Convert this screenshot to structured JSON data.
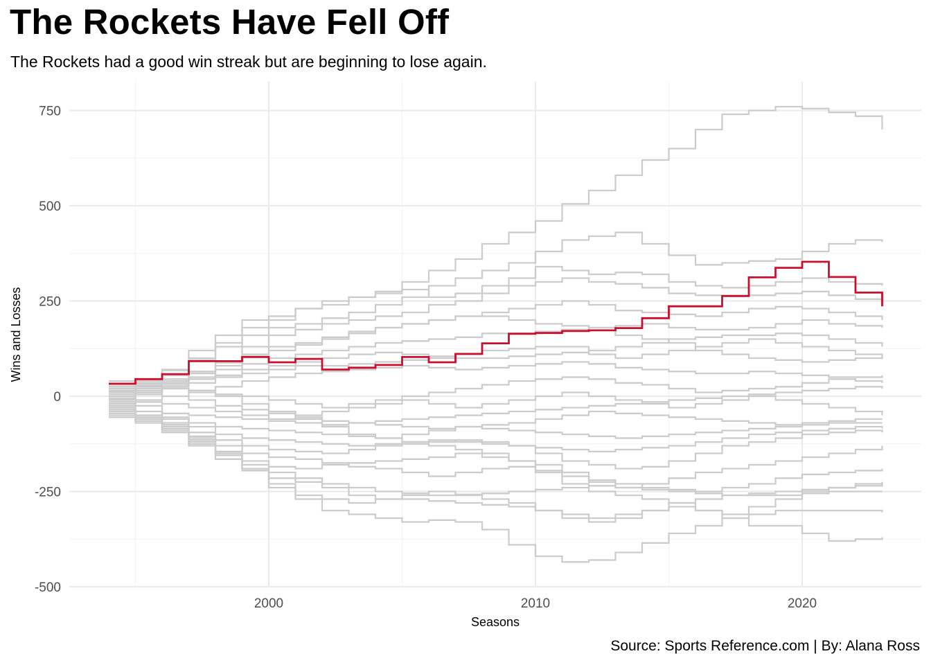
{
  "chart_data": {
    "type": "line",
    "title": "The Rockets Have Fell Off",
    "subtitle": "The Rockets had a good win streak but are beginning to lose again.",
    "caption": "Source: Sports Reference.com | By: Alana Ross",
    "xlabel": "Seasons",
    "ylabel": "Wins and Losses",
    "xlim": [
      1992.4,
      2024.4
    ],
    "ylim": [
      -500,
      800
    ],
    "x_ticks": [
      2000,
      2010,
      2020
    ],
    "x_tick_labels": [
      "2000",
      "2010",
      "2020"
    ],
    "y_ticks": [
      750,
      500,
      250,
      0,
      -250,
      -500
    ],
    "y_tick_labels": [
      "750",
      "500",
      "250",
      "0",
      "-250",
      "-500"
    ],
    "grid": true,
    "step_lines": true,
    "colors": {
      "highlight": "#c8102e",
      "other": "#cccccc",
      "grid": "#ebebeb"
    },
    "x": [
      1994,
      1995,
      1996,
      1997,
      1998,
      1999,
      2000,
      2001,
      2002,
      2003,
      2004,
      2005,
      2006,
      2007,
      2008,
      2009,
      2010,
      2011,
      2012,
      2013,
      2014,
      2015,
      2016,
      2017,
      2018,
      2019,
      2020,
      2021,
      2022,
      2023
    ],
    "series": [
      {
        "highlight": true,
        "values": [
          33,
          45,
          58,
          92,
          92,
          103,
          89,
          98,
          70,
          75,
          82,
          103,
          89,
          111,
          139,
          164,
          166,
          171,
          173,
          179,
          205,
          236,
          236,
          263,
          312,
          337,
          353,
          313,
          272,
          236
        ]
      },
      {
        "values": [
          15,
          40,
          68,
          120,
          160,
          200,
          210,
          230,
          240,
          260,
          275,
          300,
          330,
          360,
          400,
          430,
          460,
          505,
          540,
          580,
          620,
          650,
          700,
          740,
          750,
          760,
          755,
          745,
          735,
          700
        ]
      },
      {
        "values": [
          20,
          45,
          70,
          100,
          130,
          160,
          180,
          190,
          205,
          220,
          240,
          260,
          290,
          310,
          330,
          350,
          380,
          410,
          420,
          430,
          400,
          370,
          345,
          350,
          355,
          360,
          380,
          400,
          410,
          405
        ]
      },
      {
        "values": [
          10,
          35,
          55,
          95,
          140,
          180,
          200,
          230,
          250,
          260,
          270,
          280,
          260,
          270,
          290,
          310,
          340,
          330,
          320,
          325,
          320,
          300,
          290,
          285,
          290,
          300,
          310,
          300,
          295,
          290
        ]
      },
      {
        "values": [
          -10,
          5,
          35,
          60,
          90,
          130,
          160,
          175,
          190,
          200,
          210,
          220,
          240,
          250,
          270,
          290,
          300,
          310,
          300,
          295,
          285,
          270,
          265,
          265,
          265,
          270,
          275,
          265,
          255,
          250
        ]
      },
      {
        "values": [
          -20,
          10,
          30,
          50,
          80,
          110,
          130,
          140,
          155,
          170,
          180,
          190,
          200,
          210,
          220,
          230,
          240,
          250,
          240,
          225,
          220,
          215,
          210,
          220,
          230,
          235,
          230,
          220,
          210,
          200
        ]
      },
      {
        "values": [
          0,
          20,
          40,
          60,
          70,
          85,
          100,
          110,
          120,
          130,
          140,
          145,
          150,
          155,
          165,
          165,
          170,
          175,
          180,
          185,
          190,
          180,
          175,
          175,
          180,
          190,
          200,
          190,
          185,
          180
        ]
      },
      {
        "values": [
          5,
          25,
          35,
          45,
          55,
          70,
          80,
          90,
          100,
          110,
          115,
          110,
          105,
          100,
          100,
          105,
          110,
          115,
          120,
          130,
          140,
          150,
          155,
          160,
          160,
          165,
          160,
          150,
          140,
          130
        ]
      },
      {
        "values": [
          -5,
          10,
          25,
          35,
          50,
          60,
          70,
          80,
          80,
          85,
          90,
          95,
          100,
          110,
          120,
          125,
          130,
          130,
          110,
          100,
          110,
          120,
          130,
          140,
          150,
          140,
          130,
          120,
          110,
          100
        ]
      },
      {
        "values": [
          -15,
          -10,
          0,
          15,
          25,
          40,
          50,
          60,
          65,
          70,
          75,
          80,
          75,
          70,
          75,
          80,
          85,
          90,
          85,
          75,
          70,
          65,
          60,
          60,
          65,
          60,
          55,
          50,
          50,
          55
        ]
      },
      {
        "values": [
          25,
          30,
          20,
          15,
          5,
          0,
          -10,
          -20,
          -30,
          -20,
          -10,
          0,
          10,
          20,
          30,
          40,
          45,
          50,
          45,
          35,
          30,
          20,
          10,
          15,
          20,
          25,
          35,
          45,
          40,
          35
        ]
      },
      {
        "values": [
          -25,
          -15,
          -20,
          -30,
          -40,
          -50,
          -60,
          -50,
          -40,
          -30,
          -20,
          -10,
          -20,
          -30,
          -20,
          -10,
          0,
          10,
          0,
          -10,
          -20,
          -30,
          -20,
          -10,
          0,
          -10,
          -20,
          -30,
          -40,
          -50
        ]
      },
      {
        "values": [
          30,
          15,
          0,
          -10,
          -25,
          -35,
          -45,
          -55,
          -65,
          -70,
          -75,
          -80,
          -85,
          -80,
          -75,
          -70,
          -60,
          -50,
          -40,
          -45,
          -50,
          -55,
          -60,
          -65,
          -70,
          -75,
          -70,
          -65,
          -60,
          -60
        ]
      },
      {
        "values": [
          -30,
          -40,
          -55,
          -70,
          -80,
          -85,
          -90,
          -95,
          -100,
          -105,
          -110,
          -100,
          -90,
          -80,
          -85,
          -90,
          -95,
          -100,
          -105,
          -110,
          -105,
          -100,
          -95,
          -90,
          -85,
          -80,
          -75,
          -70,
          -70,
          -70
        ]
      },
      {
        "values": [
          -35,
          -50,
          -60,
          -80,
          -100,
          -110,
          -115,
          -120,
          -125,
          -130,
          -125,
          -120,
          -115,
          -120,
          -125,
          -130,
          -135,
          -140,
          -145,
          -140,
          -135,
          -130,
          -120,
          -110,
          -100,
          -95,
          -90,
          -85,
          -80,
          -85
        ]
      },
      {
        "values": [
          -40,
          -55,
          -75,
          -95,
          -115,
          -130,
          -140,
          -145,
          -150,
          -140,
          -130,
          -125,
          -120,
          -115,
          -120,
          -130,
          -150,
          -170,
          -180,
          -190,
          -185,
          -170,
          -150,
          -130,
          -120,
          -110,
          -100,
          -95,
          -90,
          -95
        ]
      },
      {
        "values": [
          -45,
          -60,
          -80,
          -105,
          -130,
          -150,
          -160,
          -165,
          -175,
          -185,
          -190,
          -200,
          -210,
          -200,
          -190,
          -185,
          -195,
          -210,
          -225,
          -240,
          -230,
          -215,
          -200,
          -190,
          -180,
          -170,
          -160,
          -150,
          -140,
          -130
        ]
      },
      {
        "values": [
          -50,
          -65,
          -90,
          -115,
          -145,
          -170,
          -185,
          -190,
          -180,
          -175,
          -170,
          -165,
          -160,
          -150,
          -160,
          -170,
          -180,
          -200,
          -220,
          -230,
          -240,
          -245,
          -250,
          -240,
          -230,
          -215,
          -205,
          -200,
          -195,
          -190
        ]
      },
      {
        "values": [
          -55,
          -70,
          -95,
          -125,
          -150,
          -180,
          -200,
          -215,
          -230,
          -240,
          -250,
          -255,
          -260,
          -258,
          -255,
          -250,
          -245,
          -240,
          -235,
          -240,
          -245,
          -250,
          -255,
          -260,
          -255,
          -250,
          -245,
          -240,
          -235,
          -230
        ]
      },
      {
        "values": [
          -30,
          -60,
          -95,
          -130,
          -165,
          -195,
          -215,
          -225,
          -240,
          -260,
          -270,
          -270,
          -275,
          -280,
          -285,
          -290,
          -300,
          -310,
          -320,
          -310,
          -300,
          -290,
          -300,
          -310,
          -290,
          -270,
          -250,
          -240,
          -230,
          -225
        ]
      },
      {
        "values": [
          -20,
          -50,
          -85,
          -120,
          -155,
          -190,
          -230,
          -260,
          -270,
          -280,
          -270,
          -260,
          -250,
          -260,
          -270,
          -280,
          -300,
          -320,
          -330,
          -320,
          -300,
          -280,
          -270,
          -260,
          -260,
          -260,
          -255,
          -250,
          -250,
          -250
        ]
      },
      {
        "values": [
          -10,
          -40,
          -70,
          -110,
          -150,
          -195,
          -240,
          -270,
          -300,
          -310,
          -320,
          -330,
          -325,
          -330,
          -350,
          -390,
          -420,
          -435,
          -430,
          -410,
          -385,
          -360,
          -340,
          -320,
          -310,
          -300,
          -300,
          -300,
          -300,
          -305
        ]
      },
      {
        "values": [
          40,
          30,
          20,
          10,
          0,
          -20,
          -40,
          -60,
          -80,
          -100,
          -110,
          -120,
          -130,
          -140,
          -150,
          -170,
          -200,
          -230,
          -250,
          -260,
          -270,
          -280,
          -300,
          -320,
          -340,
          -340,
          -360,
          -380,
          -375,
          -370
        ]
      },
      {
        "values": [
          12,
          28,
          45,
          65,
          88,
          105,
          120,
          135,
          150,
          165,
          180,
          190,
          200,
          210,
          210,
          200,
          190,
          185,
          180,
          160,
          150,
          140,
          120,
          110,
          100,
          95,
          90,
          95,
          100,
          105
        ]
      },
      {
        "values": [
          -8,
          -25,
          -45,
          -50,
          -55,
          -60,
          -65,
          -70,
          -75,
          -70,
          -65,
          -60,
          -55,
          -50,
          -45,
          -40,
          -35,
          -30,
          -25,
          -20,
          -15,
          -10,
          -5,
          0,
          5,
          10,
          15,
          20,
          25,
          20
        ]
      }
    ]
  }
}
